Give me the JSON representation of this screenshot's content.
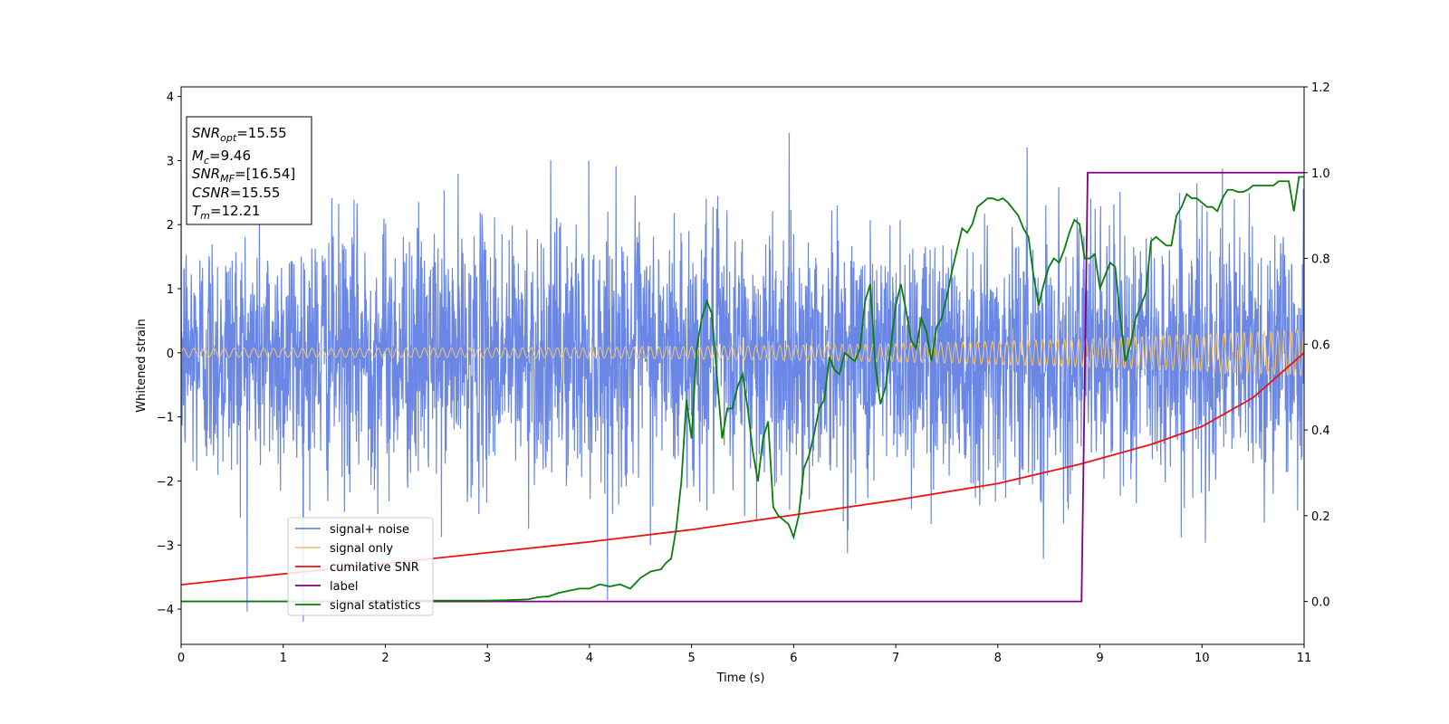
{
  "chart_data": {
    "type": "line",
    "xlabel": "Time (s)",
    "ylabel": "Whitened strain",
    "xlim": [
      0,
      11
    ],
    "ylim_left": [
      -4.55,
      4.15
    ],
    "ylim_right": [
      -0.1,
      1.2
    ],
    "x_ticks": [
      "0",
      "1",
      "2",
      "3",
      "4",
      "5",
      "6",
      "7",
      "8",
      "9",
      "10",
      "11"
    ],
    "y_ticks_left": [
      "−4",
      "−3",
      "−2",
      "−1",
      "0",
      "1",
      "2",
      "3",
      "4"
    ],
    "y_ticks_right": [
      "0.0",
      "0.2",
      "0.4",
      "0.6",
      "0.8",
      "1.0",
      "1.2"
    ],
    "grid": false,
    "legend_position": "lower-left",
    "info_box": [
      {
        "base": "SNR",
        "sub": "opt",
        "rest": "=15.55"
      },
      {
        "base": "M",
        "sub": "c",
        "rest": "=9.46"
      },
      {
        "base": "SNR",
        "sub": "MF",
        "rest": "=[16.54]"
      },
      {
        "base": "CSNR",
        "sub": "",
        "rest": "=15.55"
      },
      {
        "base": "T",
        "sub": "m",
        "rest": "=12.21"
      }
    ],
    "series": [
      {
        "name": "signal+ noise",
        "axis": "left",
        "color": "#6a87e6",
        "description": "dense random noise, std ~1, range about -4.2 to 3.8"
      },
      {
        "name": "signal only",
        "axis": "left",
        "color": "#f5c46e",
        "description": "chirp oscillation, amplitude grows from ~0.07 at t=0 to ~0.36 at t=11"
      },
      {
        "name": "cumilative SNR",
        "axis": "left",
        "color": "#ee1111",
        "x": [
          0,
          1,
          2,
          3,
          4,
          5,
          6,
          7,
          8,
          8.8,
          9.5,
          10,
          10.5,
          11
        ],
        "y": [
          -3.62,
          -3.45,
          -3.29,
          -3.12,
          -2.95,
          -2.76,
          -2.53,
          -2.3,
          -2.04,
          -1.74,
          -1.43,
          -1.15,
          -0.7,
          0
        ]
      },
      {
        "name": "label",
        "axis": "right",
        "color": "#800080",
        "x": [
          0,
          8.82,
          8.88,
          11
        ],
        "y": [
          0,
          0,
          1,
          1
        ]
      },
      {
        "name": "signal statistics",
        "axis": "right",
        "color": "#0a7d0a",
        "x": [
          0,
          0.5,
          1,
          1.5,
          2,
          2.5,
          3,
          3.2,
          3.4,
          3.5,
          3.6,
          3.7,
          3.8,
          3.9,
          4.0,
          4.1,
          4.2,
          4.3,
          4.4,
          4.5,
          4.6,
          4.7,
          4.75,
          4.8,
          4.85,
          4.9,
          4.95,
          5.0,
          5.05,
          5.1,
          5.15,
          5.2,
          5.25,
          5.3,
          5.35,
          5.4,
          5.45,
          5.5,
          5.55,
          5.6,
          5.65,
          5.7,
          5.75,
          5.8,
          5.85,
          5.9,
          5.95,
          6.0,
          6.05,
          6.1,
          6.15,
          6.2,
          6.25,
          6.3,
          6.35,
          6.4,
          6.45,
          6.5,
          6.55,
          6.6,
          6.65,
          6.7,
          6.75,
          6.8,
          6.85,
          6.9,
          6.95,
          7.0,
          7.05,
          7.1,
          7.15,
          7.2,
          7.25,
          7.3,
          7.35,
          7.4,
          7.45,
          7.5,
          7.55,
          7.6,
          7.65,
          7.7,
          7.75,
          7.8,
          7.85,
          7.9,
          7.95,
          8.0,
          8.05,
          8.1,
          8.15,
          8.2,
          8.25,
          8.3,
          8.35,
          8.4,
          8.45,
          8.5,
          8.55,
          8.6,
          8.65,
          8.7,
          8.75,
          8.8,
          8.85,
          8.9,
          8.95,
          9.0,
          9.05,
          9.1,
          9.15,
          9.2,
          9.25,
          9.3,
          9.35,
          9.4,
          9.45,
          9.5,
          9.55,
          9.6,
          9.65,
          9.7,
          9.75,
          9.8,
          9.85,
          9.9,
          9.95,
          10.0,
          10.05,
          10.1,
          10.15,
          10.2,
          10.25,
          10.3,
          10.35,
          10.4,
          10.45,
          10.5,
          10.55,
          10.6,
          10.65,
          10.7,
          10.75,
          10.8,
          10.85,
          10.9,
          10.95,
          11.0
        ],
        "y": [
          0.0,
          0.0,
          0.0,
          0.0,
          0.002,
          0.002,
          0.002,
          0.003,
          0.005,
          0.01,
          0.012,
          0.02,
          0.025,
          0.03,
          0.03,
          0.04,
          0.035,
          0.04,
          0.03,
          0.055,
          0.07,
          0.075,
          0.09,
          0.1,
          0.17,
          0.28,
          0.47,
          0.38,
          0.59,
          0.66,
          0.7,
          0.67,
          0.52,
          0.38,
          0.45,
          0.45,
          0.5,
          0.53,
          0.45,
          0.35,
          0.28,
          0.38,
          0.42,
          0.22,
          0.2,
          0.19,
          0.18,
          0.15,
          0.2,
          0.31,
          0.34,
          0.39,
          0.45,
          0.47,
          0.57,
          0.54,
          0.53,
          0.58,
          0.57,
          0.56,
          0.59,
          0.7,
          0.74,
          0.55,
          0.46,
          0.5,
          0.59,
          0.69,
          0.74,
          0.68,
          0.61,
          0.59,
          0.66,
          0.63,
          0.56,
          0.64,
          0.66,
          0.71,
          0.77,
          0.82,
          0.87,
          0.86,
          0.88,
          0.92,
          0.93,
          0.94,
          0.94,
          0.935,
          0.94,
          0.93,
          0.915,
          0.9,
          0.87,
          0.85,
          0.76,
          0.69,
          0.74,
          0.78,
          0.8,
          0.79,
          0.82,
          0.86,
          0.89,
          0.88,
          0.8,
          0.8,
          0.81,
          0.73,
          0.76,
          0.79,
          0.78,
          0.66,
          0.56,
          0.6,
          0.66,
          0.69,
          0.72,
          0.84,
          0.85,
          0.84,
          0.83,
          0.83,
          0.9,
          0.92,
          0.95,
          0.94,
          0.94,
          0.93,
          0.92,
          0.92,
          0.91,
          0.94,
          0.96,
          0.96,
          0.955,
          0.955,
          0.96,
          0.97,
          0.97,
          0.97,
          0.97,
          0.97,
          0.98,
          0.98,
          0.98,
          0.91,
          0.99,
          0.99
        ]
      }
    ]
  }
}
